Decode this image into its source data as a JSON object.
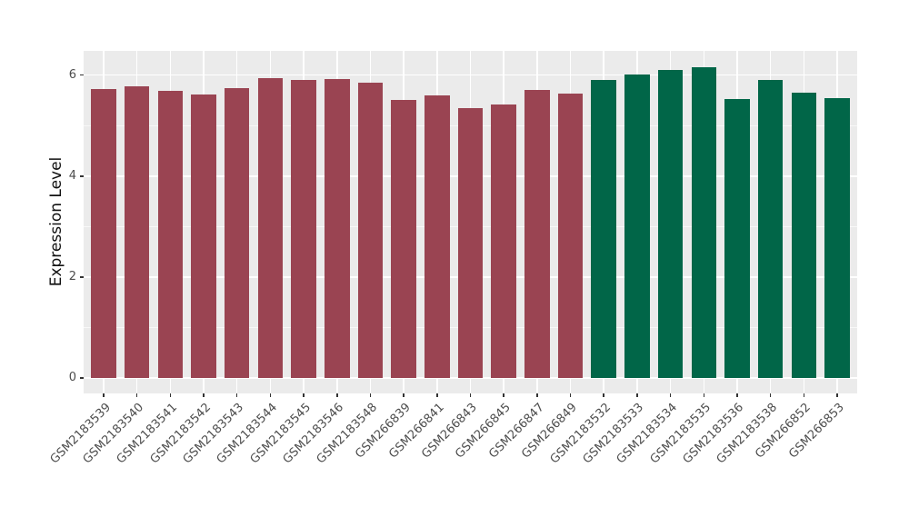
{
  "chart_data": {
    "type": "bar",
    "title": "",
    "xlabel": "",
    "ylabel": "Expression Level",
    "ylim": [
      0,
      6.48
    ],
    "yticks_major": [
      0,
      2,
      4,
      6
    ],
    "yticks_minor": [
      1,
      3,
      5
    ],
    "grid": "white major and minor horizontal lines, white vertical lines at category centers, on gray panel (ggplot style)",
    "legend": "none",
    "categories": [
      "GSM2183539",
      "GSM2183540",
      "GSM2183541",
      "GSM2183542",
      "GSM2183543",
      "GSM2183544",
      "GSM2183545",
      "GSM2183546",
      "GSM2183548",
      "GSM266839",
      "GSM266841",
      "GSM266843",
      "GSM266845",
      "GSM266847",
      "GSM266849",
      "GSM2183532",
      "GSM2183533",
      "GSM2183534",
      "GSM2183535",
      "GSM2183536",
      "GSM2183538",
      "GSM266852",
      "GSM266853"
    ],
    "values": [
      5.73,
      5.78,
      5.68,
      5.62,
      5.75,
      5.94,
      5.9,
      5.92,
      5.85,
      5.51,
      5.6,
      5.35,
      5.42,
      5.71,
      5.63,
      5.91,
      6.02,
      6.1,
      6.16,
      5.52,
      5.9,
      5.65,
      5.54
    ],
    "bar_groups": [
      "maroon",
      "maroon",
      "maroon",
      "maroon",
      "maroon",
      "maroon",
      "maroon",
      "maroon",
      "maroon",
      "maroon",
      "maroon",
      "maroon",
      "maroon",
      "maroon",
      "maroon",
      "green",
      "green",
      "green",
      "green",
      "green",
      "green",
      "green",
      "green"
    ],
    "group_colors": {
      "maroon": "#9A4452",
      "green": "#016648"
    },
    "colors": {
      "panel_bg": "#EBEBEB",
      "figure_bg": "#FFFFFF",
      "gridline": "#FFFFFF",
      "tick_label": "#4D4D4D",
      "axis_title": "#111111",
      "tick_mark": "#333333"
    }
  }
}
